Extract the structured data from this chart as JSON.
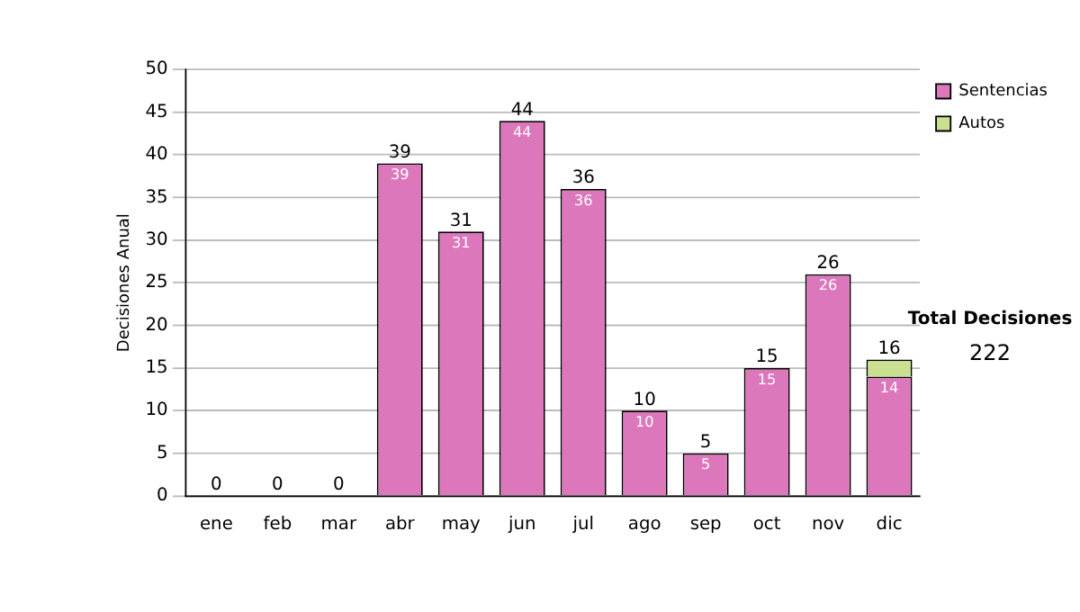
{
  "chart_data": {
    "type": "bar",
    "ylabel": "Decisiones Anual",
    "categories": [
      "ene",
      "feb",
      "mar",
      "abr",
      "may",
      "jun",
      "jul",
      "ago",
      "sep",
      "oct",
      "nov",
      "dic"
    ],
    "series": [
      {
        "name": "Sentencias",
        "color": "#dd77bb",
        "values": [
          0,
          0,
          0,
          39,
          31,
          44,
          36,
          10,
          5,
          15,
          26,
          14
        ],
        "value_labels": [
          null,
          null,
          null,
          "39",
          "31",
          "44",
          "36",
          "10",
          "5",
          "15",
          "26",
          "14"
        ]
      },
      {
        "name": "Autos",
        "color": "#c8e090",
        "values": [
          0,
          0,
          0,
          0,
          0,
          0,
          0,
          0,
          0,
          0,
          0,
          2
        ]
      }
    ],
    "stacked": true,
    "totals": [
      "0",
      "0",
      "0",
      "39",
      "31",
      "44",
      "36",
      "10",
      "5",
      "15",
      "26",
      "16"
    ],
    "ylim": [
      0,
      50
    ],
    "yticks": [
      0,
      5,
      10,
      15,
      20,
      25,
      30,
      35,
      40,
      45,
      50
    ],
    "grid": "y",
    "legend": "right",
    "annotations": [
      "Total Decisiones",
      "222"
    ]
  }
}
